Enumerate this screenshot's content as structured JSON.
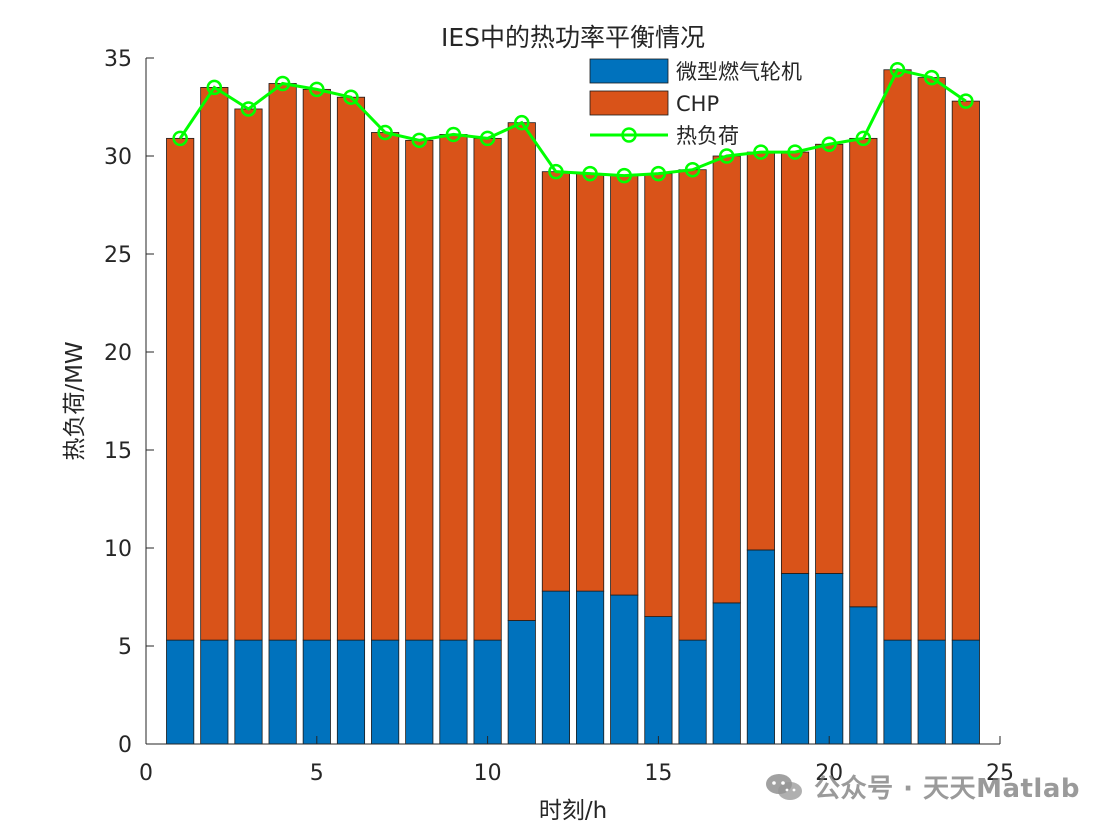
{
  "chart_data": {
    "type": "bar",
    "title": "IES中的热功率平衡情况",
    "xlabel": "时刻/h",
    "ylabel": "热负荷/MW",
    "xlim": [
      0,
      25
    ],
    "ylim": [
      0,
      35
    ],
    "xticks": [
      0,
      5,
      10,
      15,
      20,
      25
    ],
    "yticks": [
      0,
      5,
      10,
      15,
      20,
      25,
      30,
      35
    ],
    "stacked": true,
    "grid": false,
    "legend_position": "top-right",
    "x": [
      1,
      2,
      3,
      4,
      5,
      6,
      7,
      8,
      9,
      10,
      11,
      12,
      13,
      14,
      15,
      16,
      17,
      18,
      19,
      20,
      21,
      22,
      23,
      24
    ],
    "series": [
      {
        "name": "微型燃气轮机",
        "kind": "bar",
        "color": "#0072BD",
        "values": [
          5.3,
          5.3,
          5.3,
          5.3,
          5.3,
          5.3,
          5.3,
          5.3,
          5.3,
          5.3,
          6.3,
          7.8,
          7.8,
          7.6,
          6.5,
          5.3,
          7.2,
          9.9,
          8.7,
          8.7,
          7.0,
          5.3,
          5.3,
          5.3
        ]
      },
      {
        "name": "CHP",
        "kind": "bar",
        "color": "#D95319",
        "values": [
          25.6,
          28.2,
          27.1,
          28.4,
          28.1,
          27.7,
          25.9,
          25.5,
          25.8,
          25.6,
          25.4,
          21.4,
          21.3,
          21.4,
          22.6,
          24.0,
          22.8,
          20.3,
          21.5,
          21.9,
          23.9,
          29.1,
          28.7,
          27.5
        ]
      },
      {
        "name": "热负荷",
        "kind": "line",
        "color": "#00FF00",
        "values": [
          30.9,
          33.5,
          32.4,
          33.7,
          33.4,
          33.0,
          31.2,
          30.8,
          31.1,
          30.9,
          31.7,
          29.2,
          29.1,
          29.0,
          29.1,
          29.3,
          30.0,
          30.2,
          30.2,
          30.6,
          30.9,
          34.4,
          34.0,
          32.8
        ]
      }
    ]
  },
  "watermark": {
    "icon": "wechat-icon",
    "text": "公众号 · 天天Matlab"
  }
}
